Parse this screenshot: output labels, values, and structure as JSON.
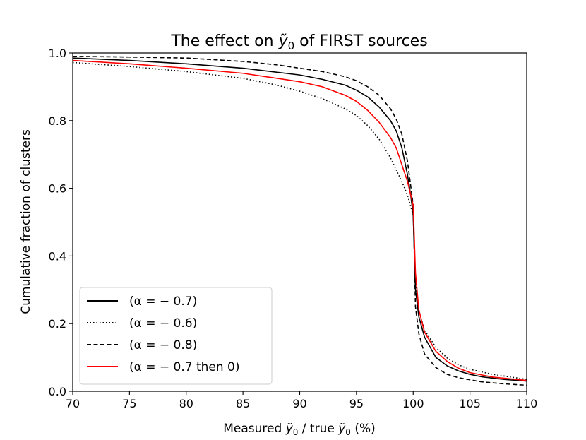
{
  "chart_data": {
    "type": "line",
    "title_prefix": "The effect on ",
    "title_symbol": "ỹ",
    "title_subscript": "0",
    "title_suffix": " of FIRST sources",
    "xlabel_prefix": "Measured ",
    "xlabel_symbol1": "ỹ",
    "xlabel_sub1": "0",
    "xlabel_middle": " / true ",
    "xlabel_symbol2": "ỹ",
    "xlabel_sub2": "0",
    "xlabel_suffix": " (%)",
    "ylabel": "Cumulative fraction of clusters",
    "xlim": [
      70,
      110
    ],
    "ylim": [
      0.0,
      1.0
    ],
    "xticks": [
      "70",
      "75",
      "80",
      "85",
      "90",
      "95",
      "100",
      "105",
      "110"
    ],
    "yticks": [
      "0.0",
      "0.2",
      "0.4",
      "0.6",
      "0.8",
      "1.0"
    ],
    "legend_location": "lower-left",
    "series": [
      {
        "name": "(α = − 0.7)",
        "color": "#000000",
        "style": "solid",
        "points": [
          [
            70,
            0.985
          ],
          [
            75,
            0.978
          ],
          [
            80,
            0.968
          ],
          [
            85,
            0.955
          ],
          [
            90,
            0.935
          ],
          [
            92,
            0.922
          ],
          [
            94,
            0.905
          ],
          [
            95,
            0.89
          ],
          [
            96,
            0.87
          ],
          [
            97,
            0.84
          ],
          [
            98,
            0.8
          ],
          [
            98.5,
            0.77
          ],
          [
            99,
            0.72
          ],
          [
            99.5,
            0.64
          ],
          [
            99.8,
            0.575
          ],
          [
            100,
            0.52
          ],
          [
            100.2,
            0.3
          ],
          [
            100.5,
            0.22
          ],
          [
            101,
            0.16
          ],
          [
            102,
            0.1
          ],
          [
            103,
            0.075
          ],
          [
            104,
            0.06
          ],
          [
            105,
            0.05
          ],
          [
            106,
            0.043
          ],
          [
            108,
            0.035
          ],
          [
            110,
            0.03
          ]
        ]
      },
      {
        "name": "(α = − 0.6)",
        "color": "#000000",
        "style": "dotted",
        "points": [
          [
            70,
            0.972
          ],
          [
            75,
            0.96
          ],
          [
            80,
            0.945
          ],
          [
            85,
            0.925
          ],
          [
            88,
            0.905
          ],
          [
            90,
            0.887
          ],
          [
            92,
            0.865
          ],
          [
            94,
            0.835
          ],
          [
            95,
            0.815
          ],
          [
            96,
            0.785
          ],
          [
            97,
            0.745
          ],
          [
            98,
            0.69
          ],
          [
            99,
            0.62
          ],
          [
            99.5,
            0.58
          ],
          [
            100,
            0.52
          ],
          [
            100.2,
            0.33
          ],
          [
            100.5,
            0.24
          ],
          [
            101,
            0.18
          ],
          [
            102,
            0.13
          ],
          [
            103,
            0.098
          ],
          [
            104,
            0.078
          ],
          [
            105,
            0.065
          ],
          [
            107,
            0.05
          ],
          [
            110,
            0.035
          ]
        ]
      },
      {
        "name": "(α = − 0.8)",
        "color": "#000000",
        "style": "dashed",
        "points": [
          [
            70,
            0.99
          ],
          [
            75,
            0.988
          ],
          [
            80,
            0.985
          ],
          [
            85,
            0.975
          ],
          [
            88,
            0.965
          ],
          [
            90,
            0.955
          ],
          [
            92,
            0.945
          ],
          [
            94,
            0.93
          ],
          [
            95,
            0.918
          ],
          [
            96,
            0.9
          ],
          [
            97,
            0.875
          ],
          [
            98,
            0.835
          ],
          [
            98.5,
            0.805
          ],
          [
            99,
            0.76
          ],
          [
            99.5,
            0.68
          ],
          [
            100,
            0.55
          ],
          [
            100.2,
            0.25
          ],
          [
            100.5,
            0.17
          ],
          [
            101,
            0.11
          ],
          [
            102,
            0.07
          ],
          [
            103,
            0.05
          ],
          [
            104,
            0.04
          ],
          [
            106,
            0.028
          ],
          [
            108,
            0.022
          ],
          [
            110,
            0.018
          ]
        ]
      },
      {
        "name": "(α = − 0.7 then 0)",
        "color": "#ff0000",
        "style": "solid",
        "points": [
          [
            70,
            0.978
          ],
          [
            75,
            0.968
          ],
          [
            80,
            0.955
          ],
          [
            85,
            0.94
          ],
          [
            90,
            0.915
          ],
          [
            92,
            0.9
          ],
          [
            94,
            0.875
          ],
          [
            95,
            0.857
          ],
          [
            96,
            0.83
          ],
          [
            97,
            0.795
          ],
          [
            98,
            0.75
          ],
          [
            98.5,
            0.72
          ],
          [
            99,
            0.67
          ],
          [
            99.5,
            0.62
          ],
          [
            100,
            0.55
          ],
          [
            100.2,
            0.35
          ],
          [
            100.5,
            0.24
          ],
          [
            101,
            0.175
          ],
          [
            102,
            0.118
          ],
          [
            103,
            0.088
          ],
          [
            104,
            0.068
          ],
          [
            105,
            0.055
          ],
          [
            107,
            0.042
          ],
          [
            110,
            0.032
          ]
        ]
      }
    ]
  }
}
